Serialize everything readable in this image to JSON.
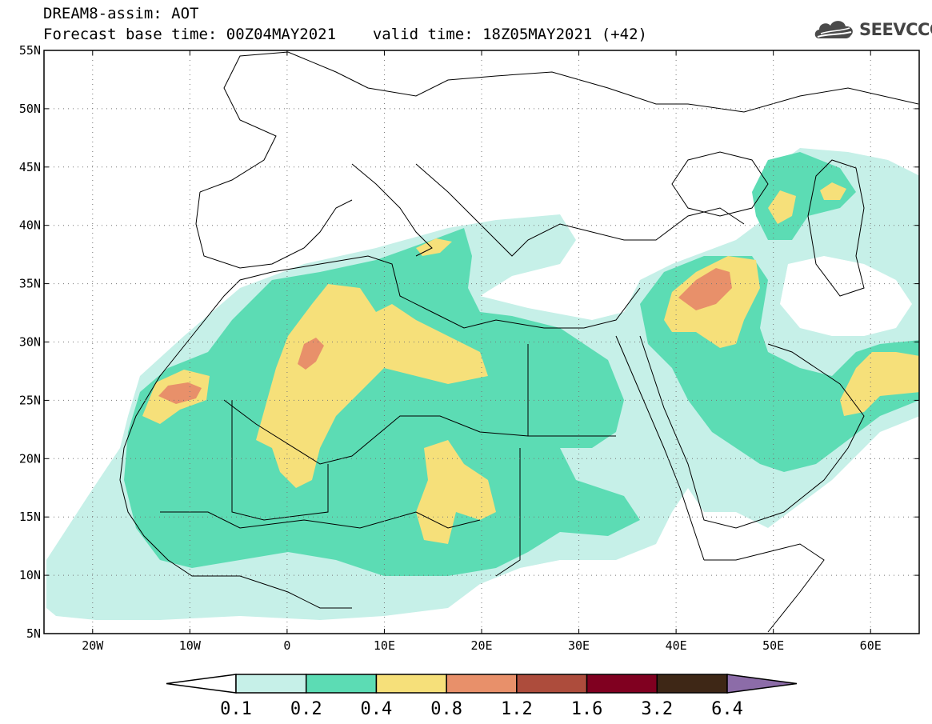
{
  "header": {
    "title": "DREAM8-assim: AOT",
    "base_time": "Forecast base time: 00Z04MAY2021",
    "valid_time": "valid time: 18Z05MAY2021 (+42)"
  },
  "logo": {
    "text": "SEEVCCC",
    "icon": "cloud-icon"
  },
  "map": {
    "lon_range": [
      -25,
      65
    ],
    "lat_range": [
      5,
      55
    ],
    "lon_ticks": [
      {
        "lon": -20,
        "label": "20W"
      },
      {
        "lon": -10,
        "label": "10W"
      },
      {
        "lon": 0,
        "label": "0"
      },
      {
        "lon": 10,
        "label": "10E"
      },
      {
        "lon": 20,
        "label": "20E"
      },
      {
        "lon": 30,
        "label": "30E"
      },
      {
        "lon": 40,
        "label": "40E"
      },
      {
        "lon": 50,
        "label": "50E"
      },
      {
        "lon": 60,
        "label": "60E"
      }
    ],
    "lat_ticks": [
      {
        "lat": 55,
        "label": "55N"
      },
      {
        "lat": 50,
        "label": "50N"
      },
      {
        "lat": 45,
        "label": "45N"
      },
      {
        "lat": 40,
        "label": "40N"
      },
      {
        "lat": 35,
        "label": "35N"
      },
      {
        "lat": 30,
        "label": "30N"
      },
      {
        "lat": 25,
        "label": "25N"
      },
      {
        "lat": 20,
        "label": "20N"
      },
      {
        "lat": 15,
        "label": "15N"
      },
      {
        "lat": 10,
        "label": "10N"
      },
      {
        "lat": 5,
        "label": "5N"
      }
    ],
    "grid": "dotted"
  },
  "colorbar": {
    "labels": [
      "0.1",
      "0.2",
      "0.4",
      "0.8",
      "1.2",
      "1.6",
      "3.2",
      "6.4"
    ],
    "colors": [
      "#ffffff",
      "#c6f0e8",
      "#5cdcb4",
      "#f6e07a",
      "#e8906a",
      "#ad4c3c",
      "#800020",
      "#3e2716",
      "#8c6ca8"
    ]
  }
}
